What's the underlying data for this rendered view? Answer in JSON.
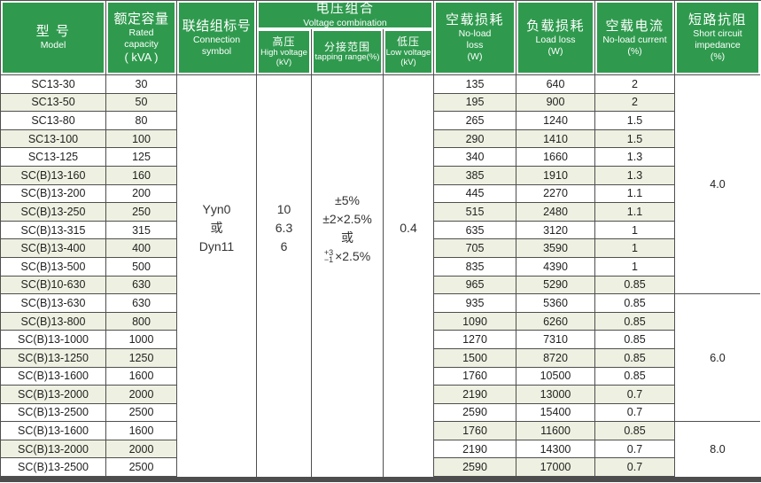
{
  "header": {
    "model_zh": "型 号",
    "model_en": "Model",
    "capacity_zh": "额定容量",
    "capacity_en1": "Rated",
    "capacity_en2": "capacity",
    "capacity_unit": "( kVA )",
    "connection_zh": "联结组标号",
    "connection_en1": "Connection",
    "connection_en2": "symbol",
    "voltage_zh": "电压组合",
    "voltage_en": "Voltage combination",
    "hv_zh": "高压",
    "hv_en": "High voltage",
    "hv_unit": "(kV)",
    "tap_zh": "分接范围",
    "tap_en": "tapping range(%)",
    "lv_zh": "低压",
    "lv_en": "Low voltage",
    "lv_unit": "(kV)",
    "nll_zh": "空载损耗",
    "nll_en1": "No-load",
    "nll_en2": "loss",
    "nll_unit": "(W)",
    "ll_zh": "负载损耗",
    "ll_en": "Load loss",
    "ll_unit": "(W)",
    "nlc_zh": "空载电流",
    "nlc_en": "No-load current",
    "nlc_unit": "(%)",
    "imp_zh": "短路抗阻",
    "imp_en1": "Short circuit",
    "imp_en2": "impedance",
    "imp_unit": "(%)"
  },
  "merged": {
    "connection_lines": [
      "Yyn0",
      "或",
      "Dyn11"
    ],
    "hv_lines": [
      "10",
      "6.3",
      "6"
    ],
    "tap_line1": "±5%",
    "tap_line2": "±2×2.5%",
    "tap_line3": "或",
    "tap_sup": "+3",
    "tap_sub": "−1",
    "tap_rest": "×2.5%",
    "lv_value": "0.4"
  },
  "impedance_sections": [
    {
      "value": "4.0",
      "span": 12
    },
    {
      "value": "6.0",
      "span": 7
    },
    {
      "value": "8.0",
      "span": 3
    }
  ],
  "rows": [
    {
      "model": "SC13-30",
      "capacity": "30",
      "no_load_loss": "135",
      "load_loss": "640",
      "no_load_current": "2",
      "left_tint": false,
      "right_tint": false
    },
    {
      "model": "SC13-50",
      "capacity": "50",
      "no_load_loss": "195",
      "load_loss": "900",
      "no_load_current": "2",
      "left_tint": true,
      "right_tint": true
    },
    {
      "model": "SC13-80",
      "capacity": "80",
      "no_load_loss": "265",
      "load_loss": "1240",
      "no_load_current": "1.5",
      "left_tint": false,
      "right_tint": false
    },
    {
      "model": "SC13-100",
      "capacity": "100",
      "no_load_loss": "290",
      "load_loss": "1410",
      "no_load_current": "1.5",
      "left_tint": true,
      "right_tint": true
    },
    {
      "model": "SC13-125",
      "capacity": "125",
      "no_load_loss": "340",
      "load_loss": "1660",
      "no_load_current": "1.3",
      "left_tint": false,
      "right_tint": false
    },
    {
      "model": "SC(B)13-160",
      "capacity": "160",
      "no_load_loss": "385",
      "load_loss": "1910",
      "no_load_current": "1.3",
      "left_tint": true,
      "right_tint": true
    },
    {
      "model": "SC(B)13-200",
      "capacity": "200",
      "no_load_loss": "445",
      "load_loss": "2270",
      "no_load_current": "1.1",
      "left_tint": false,
      "right_tint": false
    },
    {
      "model": "SC(B)13-250",
      "capacity": "250",
      "no_load_loss": "515",
      "load_loss": "2480",
      "no_load_current": "1.1",
      "left_tint": true,
      "right_tint": true
    },
    {
      "model": "SC(B)13-315",
      "capacity": "315",
      "no_load_loss": "635",
      "load_loss": "3120",
      "no_load_current": "1",
      "left_tint": false,
      "right_tint": false
    },
    {
      "model": "SC(B)13-400",
      "capacity": "400",
      "no_load_loss": "705",
      "load_loss": "3590",
      "no_load_current": "1",
      "left_tint": true,
      "right_tint": true
    },
    {
      "model": "SC(B)13-500",
      "capacity": "500",
      "no_load_loss": "835",
      "load_loss": "4390",
      "no_load_current": "1",
      "left_tint": false,
      "right_tint": false
    },
    {
      "model": "SC(B)10-630",
      "capacity": "630",
      "no_load_loss": "965",
      "load_loss": "5290",
      "no_load_current": "0.85",
      "left_tint": true,
      "right_tint": true
    },
    {
      "model": "SC(B)13-630",
      "capacity": "630",
      "no_load_loss": "935",
      "load_loss": "5360",
      "no_load_current": "0.85",
      "left_tint": false,
      "right_tint": false
    },
    {
      "model": "SC(B)13-800",
      "capacity": "800",
      "no_load_loss": "1090",
      "load_loss": "6260",
      "no_load_current": "0.85",
      "left_tint": true,
      "right_tint": true
    },
    {
      "model": "SC(B)13-1000",
      "capacity": "1000",
      "no_load_loss": "1270",
      "load_loss": "7310",
      "no_load_current": "0.85",
      "left_tint": false,
      "right_tint": false
    },
    {
      "model": "SC(B)13-1250",
      "capacity": "1250",
      "no_load_loss": "1500",
      "load_loss": "8720",
      "no_load_current": "0.85",
      "left_tint": true,
      "right_tint": true
    },
    {
      "model": "SC(B)13-1600",
      "capacity": "1600",
      "no_load_loss": "1760",
      "load_loss": "10500",
      "no_load_current": "0.85",
      "left_tint": false,
      "right_tint": false
    },
    {
      "model": "SC(B)13-2000",
      "capacity": "2000",
      "no_load_loss": "2190",
      "load_loss": "13000",
      "no_load_current": "0.7",
      "left_tint": true,
      "right_tint": true
    },
    {
      "model": "SC(B)13-2500",
      "capacity": "2500",
      "no_load_loss": "2590",
      "load_loss": "15400",
      "no_load_current": "0.7",
      "left_tint": false,
      "right_tint": false
    },
    {
      "model": "SC(B)13-1600",
      "capacity": "1600",
      "no_load_loss": "1760",
      "load_loss": "11600",
      "no_load_current": "0.85",
      "left_tint": false,
      "right_tint": true
    },
    {
      "model": "SC(B)13-2000",
      "capacity": "2000",
      "no_load_loss": "2190",
      "load_loss": "14300",
      "no_load_current": "0.7",
      "left_tint": true,
      "right_tint": false
    },
    {
      "model": "SC(B)13-2500",
      "capacity": "2500",
      "no_load_loss": "2590",
      "load_loss": "17000",
      "no_load_current": "0.7",
      "left_tint": false,
      "right_tint": true
    }
  ],
  "colors": {
    "header_green": "#2f9a4e",
    "header_text": "#ffffff",
    "row_tint": "#eef0e1",
    "grid_line": "#4f4f4f",
    "bottom_bar": "#4d4d4d"
  }
}
